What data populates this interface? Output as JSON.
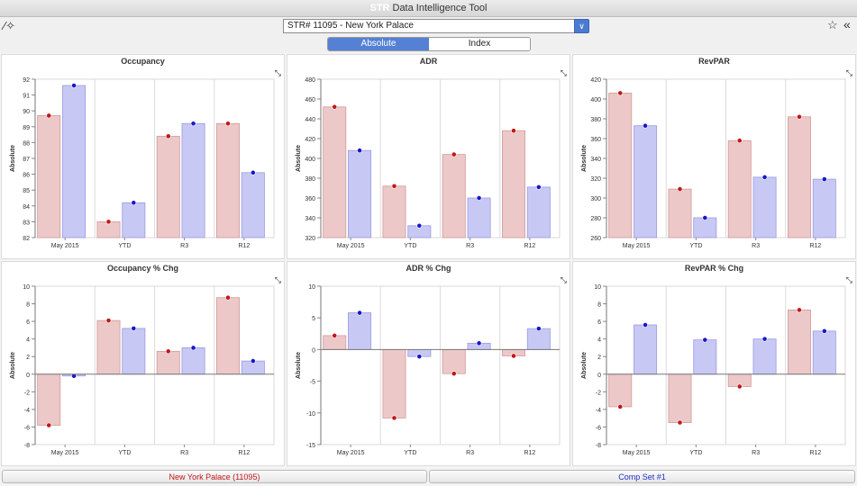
{
  "app": {
    "logo": "STR",
    "title": "Data Intelligence Tool"
  },
  "selector": {
    "value": "STR# 11095 - New York Palace"
  },
  "tabs": [
    {
      "label": "Absolute",
      "active": true
    },
    {
      "label": "Index",
      "active": false
    }
  ],
  "colors": {
    "subject": "#c01818",
    "comp": "#1818c8",
    "subject_fill": "#ecc8c8",
    "comp_fill": "#c8c8f4",
    "tab_active": "#5581d4"
  },
  "legend": {
    "subject": "New York Palace (11095)",
    "comp": "Comp Set #1"
  },
  "chart_data": [
    {
      "type": "bar",
      "title": "Occupancy",
      "ylabel": "Absolute",
      "categories": [
        "May 2015",
        "YTD",
        "R3",
        "R12"
      ],
      "ylim": [
        82,
        92
      ],
      "yticks": [
        82,
        83,
        84,
        85,
        86,
        87,
        88,
        89,
        90,
        91,
        92
      ],
      "series": [
        {
          "name": "New York Palace (11095)",
          "values": [
            89.7,
            83.0,
            88.4,
            89.2
          ]
        },
        {
          "name": "Comp Set #1",
          "values": [
            91.6,
            84.2,
            89.2,
            86.1
          ]
        }
      ]
    },
    {
      "type": "bar",
      "title": "ADR",
      "ylabel": "Absolute",
      "categories": [
        "May 2015",
        "YTD",
        "R3",
        "R12"
      ],
      "ylim": [
        320,
        480
      ],
      "yticks": [
        320,
        340,
        360,
        380,
        400,
        420,
        440,
        460,
        480
      ],
      "series": [
        {
          "name": "New York Palace (11095)",
          "values": [
            452,
            372,
            404,
            428
          ]
        },
        {
          "name": "Comp Set #1",
          "values": [
            408,
            332,
            360,
            371
          ]
        }
      ]
    },
    {
      "type": "bar",
      "title": "RevPAR",
      "ylabel": "Absolute",
      "categories": [
        "May 2015",
        "YTD",
        "R3",
        "R12"
      ],
      "ylim": [
        260,
        420
      ],
      "yticks": [
        260,
        280,
        300,
        320,
        340,
        360,
        380,
        400,
        420
      ],
      "series": [
        {
          "name": "New York Palace (11095)",
          "values": [
            406,
            309,
            358,
            382
          ]
        },
        {
          "name": "Comp Set #1",
          "values": [
            373,
            280,
            321,
            319
          ]
        }
      ]
    },
    {
      "type": "bar",
      "title": "Occupancy % Chg",
      "ylabel": "Absolute",
      "categories": [
        "May 2015",
        "YTD",
        "R3",
        "R12"
      ],
      "ylim": [
        -8,
        10
      ],
      "yticks": [
        -8,
        -6,
        -4,
        -2,
        0,
        2,
        4,
        6,
        8,
        10
      ],
      "series": [
        {
          "name": "New York Palace (11095)",
          "values": [
            -5.8,
            6.1,
            2.6,
            8.7
          ]
        },
        {
          "name": "Comp Set #1",
          "values": [
            -0.2,
            5.2,
            3.0,
            1.5
          ]
        }
      ]
    },
    {
      "type": "bar",
      "title": "ADR % Chg",
      "ylabel": "Absolute",
      "categories": [
        "May 2015",
        "YTD",
        "R3",
        "R12"
      ],
      "ylim": [
        -15,
        10
      ],
      "yticks": [
        -15,
        -10,
        -5,
        0,
        5,
        10
      ],
      "series": [
        {
          "name": "New York Palace (11095)",
          "values": [
            2.2,
            -10.8,
            -3.8,
            -1.0
          ]
        },
        {
          "name": "Comp Set #1",
          "values": [
            5.8,
            -1.1,
            1.0,
            3.3
          ]
        }
      ]
    },
    {
      "type": "bar",
      "title": "RevPAR % Chg",
      "ylabel": "Absolute",
      "categories": [
        "May 2015",
        "YTD",
        "R3",
        "R12"
      ],
      "ylim": [
        -8,
        10
      ],
      "yticks": [
        -8,
        -6,
        -4,
        -2,
        0,
        2,
        4,
        6,
        8,
        10
      ],
      "series": [
        {
          "name": "New York Palace (11095)",
          "values": [
            -3.7,
            -5.5,
            -1.4,
            7.3
          ]
        },
        {
          "name": "Comp Set #1",
          "values": [
            5.6,
            3.9,
            4.0,
            4.9
          ]
        }
      ]
    }
  ]
}
